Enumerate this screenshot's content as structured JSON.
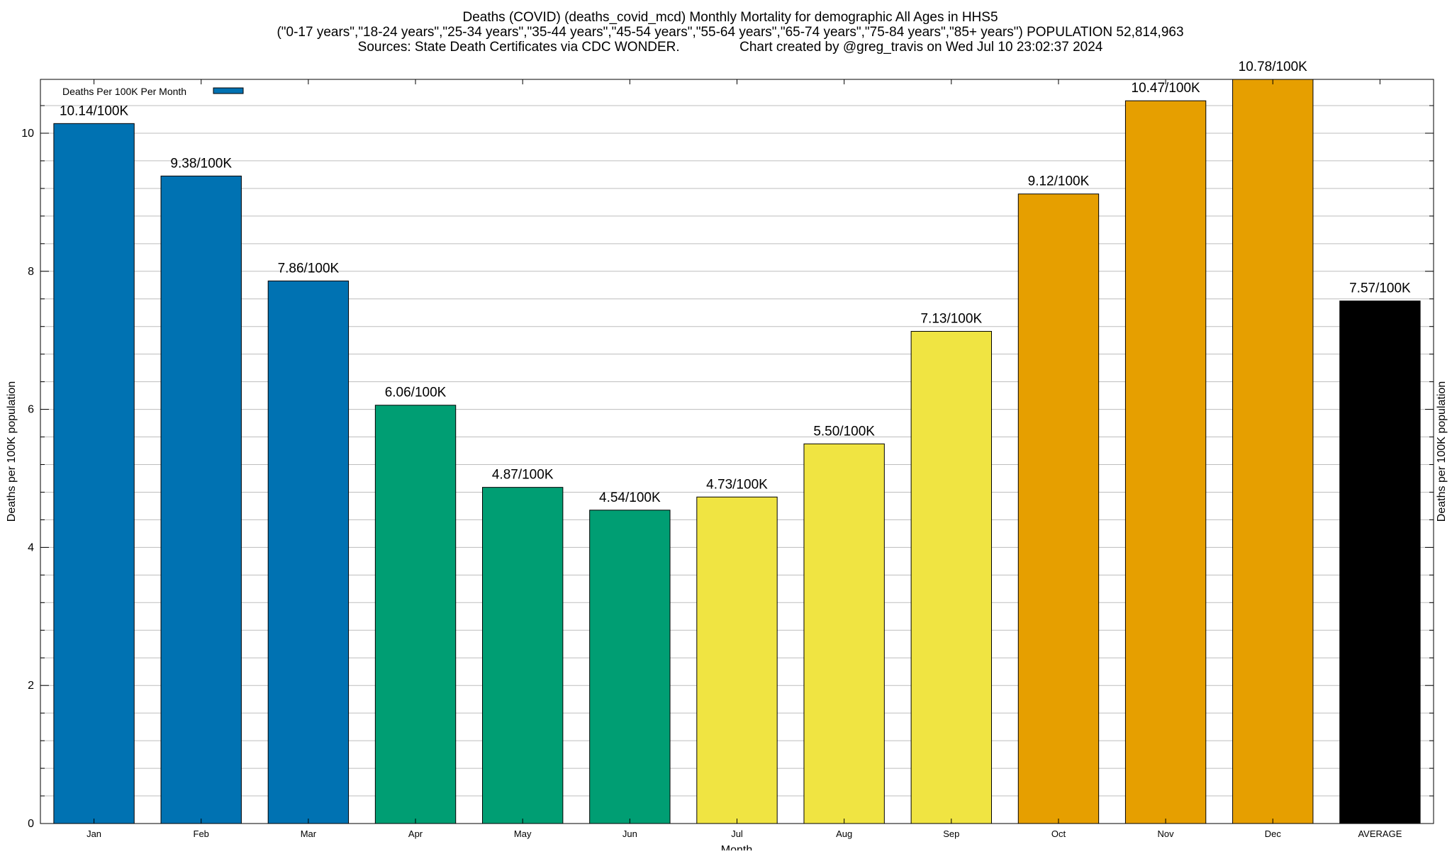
{
  "chart_data": {
    "type": "bar",
    "title_lines": [
      "Deaths (COVID) (deaths_covid_mcd) Monthly Mortality for demographic All Ages in HHS5",
      "(\"0-17 years\",\"18-24 years\",\"25-34 years\",\"35-44 years\",\"45-54 years\",\"55-64 years\",\"65-74 years\",\"75-84 years\",\"85+ years\") POPULATION 52,814,963",
      "Sources: State Death Certificates via CDC WONDER.                Chart created by @greg_travis on Wed Jul 10 23:02:37 2024"
    ],
    "xlabel": "Month",
    "ylabel": "Deaths per 100K population",
    "y2label": "Deaths per 100K population",
    "ylim": [
      0,
      10.78
    ],
    "yticks": [
      0,
      2,
      4,
      6,
      8,
      10
    ],
    "y_minor_step": 0.4,
    "grid": true,
    "legend": {
      "position": "top-left",
      "label": "Deaths Per 100K Per Month",
      "color": "#0072b2"
    },
    "categories": [
      "Jan",
      "Feb",
      "Mar",
      "Apr",
      "May",
      "Jun",
      "Jul",
      "Aug",
      "Sep",
      "Oct",
      "Nov",
      "Dec",
      "AVERAGE"
    ],
    "values": [
      10.14,
      9.38,
      7.86,
      6.06,
      4.87,
      4.54,
      4.73,
      5.5,
      7.13,
      9.12,
      10.47,
      10.78,
      7.57
    ],
    "value_labels": [
      "10.14/100K",
      "9.38/100K",
      "7.86/100K",
      "6.06/100K",
      "4.87/100K",
      "4.54/100K",
      "4.73/100K",
      "5.50/100K",
      "7.13/100K",
      "9.12/100K",
      "10.47/100K",
      "10.78/100K",
      "7.57/100K"
    ],
    "colors": [
      "#0072b2",
      "#0072b2",
      "#0072b2",
      "#009e73",
      "#009e73",
      "#009e73",
      "#f0e442",
      "#f0e442",
      "#f0e442",
      "#e69f00",
      "#e69f00",
      "#e69f00",
      "#000000"
    ]
  }
}
